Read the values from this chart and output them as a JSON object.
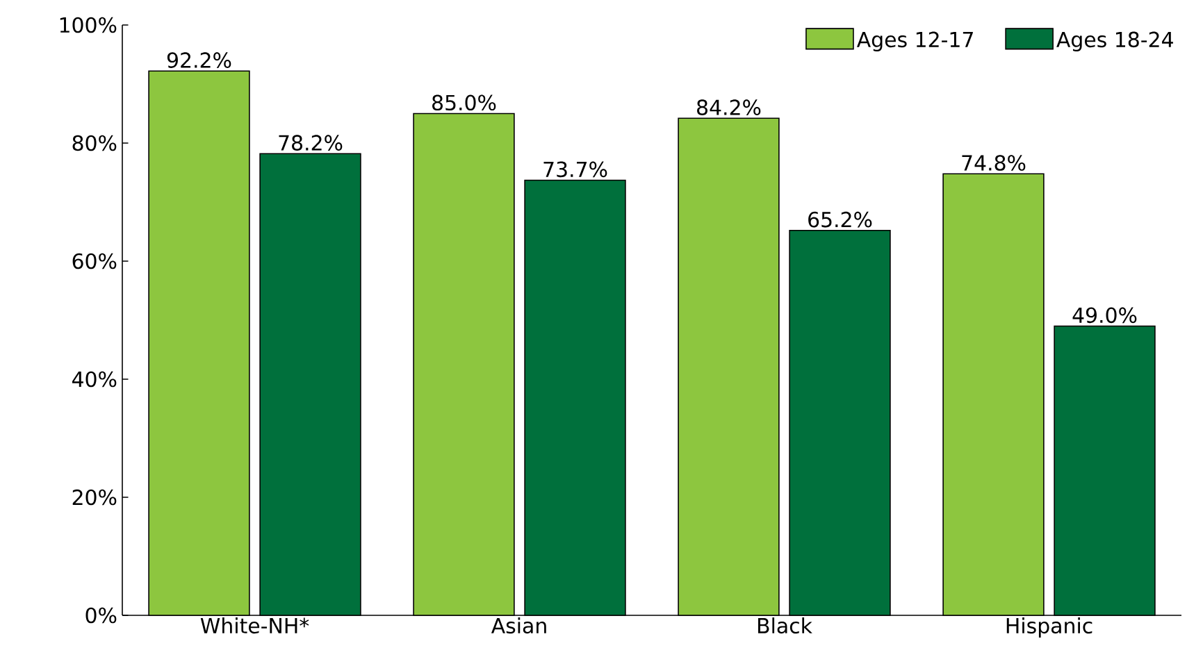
{
  "chart_data": {
    "type": "bar",
    "categories": [
      "White-NH*",
      "Asian",
      "Black",
      "Hispanic"
    ],
    "series": [
      {
        "name": "Ages 12-17",
        "color": "#8dc63f",
        "values": [
          92.2,
          85.0,
          84.2,
          74.8
        ],
        "value_labels": [
          "92.2%",
          "85.0%",
          "84.2%",
          "74.8%"
        ]
      },
      {
        "name": "Ages 18-24",
        "color": "#00703c",
        "values": [
          78.2,
          73.7,
          65.2,
          49.0
        ],
        "value_labels": [
          "78.2%",
          "73.7%",
          "65.2%",
          "49.0%"
        ]
      }
    ],
    "ylim": [
      0,
      100
    ],
    "yticks": [
      {
        "value": 0,
        "label": "0%"
      },
      {
        "value": 20,
        "label": "20%"
      },
      {
        "value": 40,
        "label": "40%"
      },
      {
        "value": 60,
        "label": "60%"
      },
      {
        "value": 80,
        "label": "80%"
      },
      {
        "value": 100,
        "label": "100%"
      }
    ],
    "grid": false,
    "legend": "top right"
  }
}
